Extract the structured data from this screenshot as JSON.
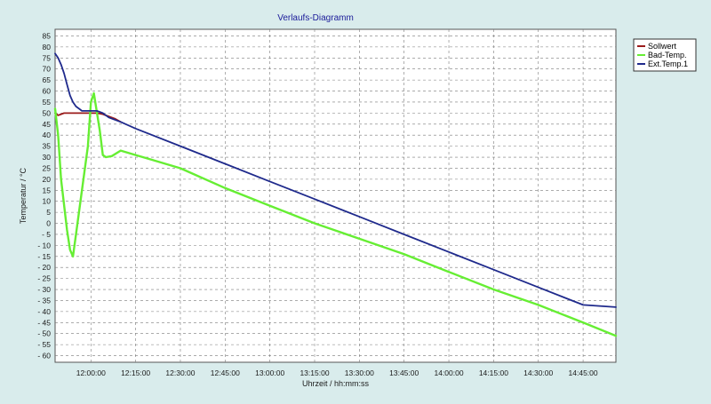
{
  "colors": {
    "background": "#d9ecec",
    "plot_background": "#ffffff",
    "grid": "#7a7a7a",
    "title": "#1a1a99"
  },
  "chart_data": {
    "type": "line",
    "title": "Verlaufs-Diagramm",
    "xlabel": "Uhrzeit / hh:mm:ss",
    "ylabel": "Temperatur / °C",
    "xlim": [
      "11:48:00",
      "14:56:00"
    ],
    "ylim": [
      -63,
      88
    ],
    "x_ticks": [
      "12:00:00",
      "12:15:00",
      "12:30:00",
      "12:45:00",
      "13:00:00",
      "13:15:00",
      "13:30:00",
      "13:45:00",
      "14:00:00",
      "14:15:00",
      "14:30:00",
      "14:45:00"
    ],
    "y_ticks": [
      85,
      80,
      75,
      70,
      65,
      60,
      55,
      50,
      45,
      40,
      35,
      30,
      25,
      20,
      15,
      10,
      5,
      0,
      -5,
      -10,
      -15,
      -20,
      -25,
      -30,
      -35,
      -40,
      -45,
      -50,
      -55,
      -60
    ],
    "grid": true,
    "legend_position": "top-right",
    "series": [
      {
        "name": "Sollwert",
        "color": "#9b1b1b",
        "x": [
          "11:48:00",
          "11:49:00",
          "11:51:00",
          "11:54:00",
          "11:58:00",
          "12:00:00",
          "12:02:00",
          "12:04:00",
          "12:06:00",
          "12:08:00",
          "12:10:00"
        ],
        "y": [
          50,
          49,
          50,
          50,
          50,
          50,
          50,
          49.5,
          48.5,
          47.5,
          46
        ]
      },
      {
        "name": "Bad-Temp.",
        "color": "#66ee33",
        "x": [
          "11:48:00",
          "11:49:00",
          "11:50:00",
          "11:52:00",
          "11:53:00",
          "11:54:00",
          "11:55:00",
          "11:57:00",
          "11:59:00",
          "12:00:00",
          "12:01:00",
          "12:03:00",
          "12:04:00",
          "12:05:00",
          "12:07:00",
          "12:10:00",
          "12:15:00",
          "12:20:00",
          "12:30:00",
          "12:45:00",
          "13:00:00",
          "13:15:00",
          "13:30:00",
          "13:45:00",
          "14:00:00",
          "14:15:00",
          "14:30:00",
          "14:45:00",
          "14:56:00"
        ],
        "y": [
          52,
          40,
          20,
          -3,
          -12,
          -15,
          -5,
          15,
          35,
          55,
          59,
          42,
          31,
          30,
          30.5,
          33,
          31,
          29,
          25,
          16,
          8,
          0,
          -7,
          -14,
          -22,
          -30,
          -37,
          -45,
          -51
        ]
      },
      {
        "name": "Ext.Temp.1",
        "color": "#1f2a8c",
        "x": [
          "11:48:00",
          "11:49:00",
          "11:50:00",
          "11:51:00",
          "11:52:00",
          "11:53:00",
          "11:54:00",
          "11:55:00",
          "11:56:00",
          "11:57:00",
          "11:58:00",
          "11:59:00",
          "12:00:00",
          "12:02:00",
          "12:04:00",
          "12:06:00",
          "12:08:00",
          "12:10:00",
          "12:15:00",
          "12:30:00",
          "12:45:00",
          "13:00:00",
          "13:15:00",
          "13:30:00",
          "13:45:00",
          "14:00:00",
          "14:15:00",
          "14:30:00",
          "14:45:00",
          "14:56:00"
        ],
        "y": [
          77,
          75,
          72,
          68,
          63,
          58,
          55,
          53,
          52,
          51,
          51,
          51,
          51,
          51,
          50,
          48,
          47,
          46,
          43,
          35,
          27,
          19,
          11,
          3,
          -5,
          -13,
          -21,
          -29,
          -37,
          -38
        ]
      }
    ]
  }
}
